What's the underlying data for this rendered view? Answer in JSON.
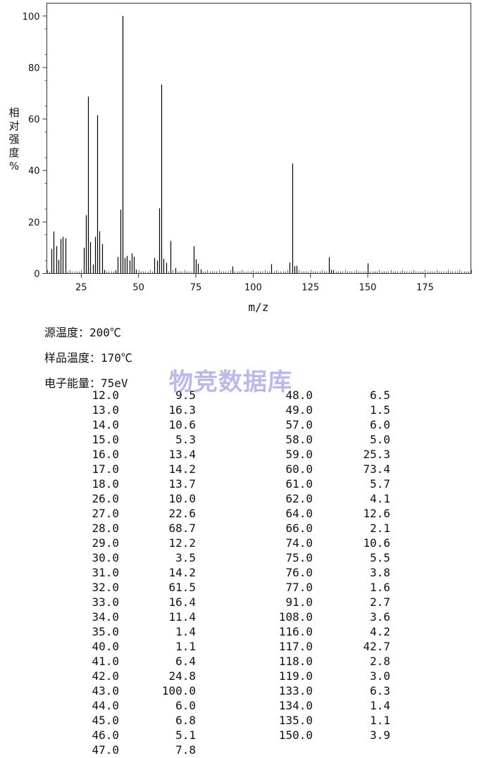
{
  "chart_data": {
    "type": "bar",
    "title": "",
    "xlabel": "m/z",
    "ylabel": "相对强度 %",
    "xlim": [
      10,
      195
    ],
    "ylim": [
      0,
      105
    ],
    "x_ticks": [
      25,
      50,
      75,
      100,
      125,
      150,
      175
    ],
    "y_ticks": [
      0,
      20,
      40,
      60,
      80,
      100
    ],
    "grid": false,
    "x": [
      12,
      13,
      14,
      15,
      16,
      17,
      18,
      26,
      27,
      28,
      29,
      30,
      31,
      32,
      33,
      34,
      35,
      40,
      41,
      42,
      43,
      44,
      45,
      46,
      47,
      48,
      49,
      57,
      58,
      59,
      60,
      61,
      62,
      64,
      66,
      74,
      75,
      76,
      77,
      91,
      108,
      116,
      117,
      118,
      119,
      133,
      134,
      135,
      150
    ],
    "values": [
      9.5,
      16.3,
      10.6,
      5.3,
      13.4,
      14.2,
      13.7,
      10.0,
      22.6,
      68.7,
      12.2,
      3.5,
      14.2,
      61.5,
      16.4,
      11.4,
      1.4,
      1.1,
      6.4,
      24.8,
      100.0,
      6.0,
      6.8,
      5.1,
      7.8,
      6.5,
      1.5,
      6.0,
      5.0,
      25.3,
      73.4,
      5.7,
      4.1,
      12.6,
      2.1,
      10.6,
      5.5,
      3.8,
      1.6,
      2.7,
      3.6,
      4.2,
      42.7,
      2.8,
      3.0,
      6.3,
      1.4,
      1.1,
      3.9
    ]
  },
  "info": {
    "source_temp": "源温度：200℃",
    "sample_temp": "样品温度：170℃",
    "electron_energy": "电子能量：75eV"
  },
  "watermark": "物竞数据库",
  "peak_table": {
    "left_column": [
      [
        "12.0",
        "9.5"
      ],
      [
        "13.0",
        "16.3"
      ],
      [
        "14.0",
        "10.6"
      ],
      [
        "15.0",
        "5.3"
      ],
      [
        "16.0",
        "13.4"
      ],
      [
        "17.0",
        "14.2"
      ],
      [
        "18.0",
        "13.7"
      ],
      [
        "26.0",
        "10.0"
      ],
      [
        "27.0",
        "22.6"
      ],
      [
        "28.0",
        "68.7"
      ],
      [
        "29.0",
        "12.2"
      ],
      [
        "30.0",
        "3.5"
      ],
      [
        "31.0",
        "14.2"
      ],
      [
        "32.0",
        "61.5"
      ],
      [
        "33.0",
        "16.4"
      ],
      [
        "34.0",
        "11.4"
      ],
      [
        "35.0",
        "1.4"
      ],
      [
        "40.0",
        "1.1"
      ],
      [
        "41.0",
        "6.4"
      ],
      [
        "42.0",
        "24.8"
      ],
      [
        "43.0",
        "100.0"
      ],
      [
        "44.0",
        "6.0"
      ],
      [
        "45.0",
        "6.8"
      ],
      [
        "46.0",
        "5.1"
      ],
      [
        "47.0",
        "7.8"
      ]
    ],
    "right_column": [
      [
        "48.0",
        "6.5"
      ],
      [
        "49.0",
        "1.5"
      ],
      [
        "57.0",
        "6.0"
      ],
      [
        "58.0",
        "5.0"
      ],
      [
        "59.0",
        "25.3"
      ],
      [
        "60.0",
        "73.4"
      ],
      [
        "61.0",
        "5.7"
      ],
      [
        "62.0",
        "4.1"
      ],
      [
        "64.0",
        "12.6"
      ],
      [
        "66.0",
        "2.1"
      ],
      [
        "74.0",
        "10.6"
      ],
      [
        "75.0",
        "5.5"
      ],
      [
        "76.0",
        "3.8"
      ],
      [
        "77.0",
        "1.6"
      ],
      [
        "91.0",
        "2.7"
      ],
      [
        "108.0",
        "3.6"
      ],
      [
        "116.0",
        "4.2"
      ],
      [
        "117.0",
        "42.7"
      ],
      [
        "118.0",
        "2.8"
      ],
      [
        "119.0",
        "3.0"
      ],
      [
        "133.0",
        "6.3"
      ],
      [
        "134.0",
        "1.4"
      ],
      [
        "135.0",
        "1.1"
      ],
      [
        "150.0",
        "3.9"
      ]
    ]
  }
}
